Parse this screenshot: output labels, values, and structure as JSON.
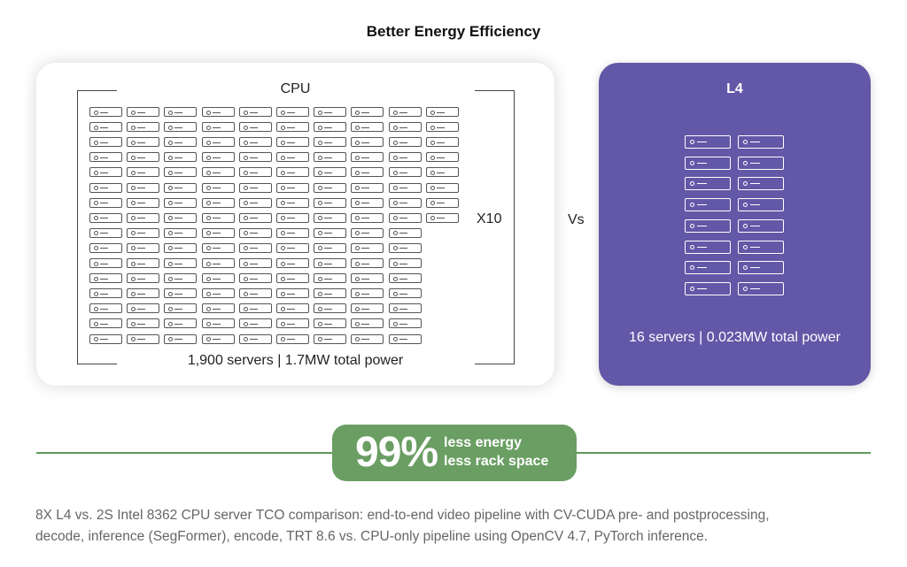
{
  "title": "Better Energy Efficiency",
  "cpu_panel": {
    "label": "CPU",
    "multiplier": "X10",
    "caption": "1,900 servers | 1.7MW total power",
    "grid_rows": 16,
    "grid_cols": 10,
    "full_rows": 8
  },
  "vs_label": "Vs",
  "l4_panel": {
    "label": "L4",
    "caption": "16 servers | 0.023MW total power",
    "grid_rows": 8,
    "grid_cols": 2
  },
  "badge": {
    "percent": "99%",
    "line1": "less energy",
    "line2": "less rack space"
  },
  "footnote": {
    "line1": "8X L4 vs. 2S Intel 8362 CPU server TCO comparison: end-to-end video pipeline with CV-CUDA pre- and postprocessing,",
    "line2": "decode, inference (SegFormer), encode, TRT 8.6 vs. CPU-only pipeline using OpenCV 4.7, PyTorch inference."
  },
  "colors": {
    "l4_panel": "#6357a7",
    "badge": "#6a9e63",
    "rule": "#5e9a58"
  }
}
